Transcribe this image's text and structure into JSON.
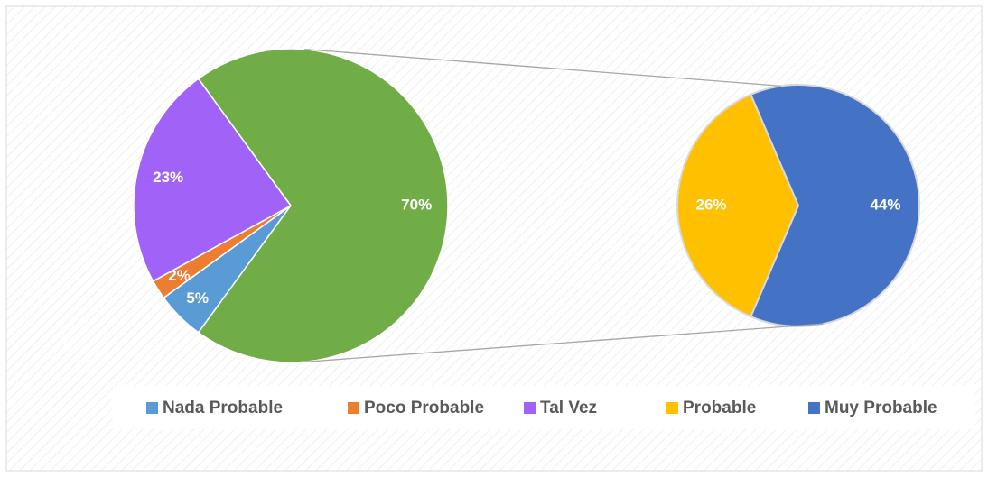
{
  "chart_data": {
    "type": "pie-of-pie",
    "categories": [
      "Nada Probable",
      "Poco Probable",
      "Tal Vez",
      "Probable",
      "Muy Probable"
    ],
    "values": [
      5,
      2,
      23,
      26,
      44
    ],
    "value_labels": [
      "5%",
      "2%",
      "23%",
      "26%",
      "44%"
    ],
    "colors": [
      "#5b9bd5",
      "#ed7d31",
      "#a162f7",
      "#ffc000",
      "#4472c4"
    ],
    "split": [
      3,
      4
    ],
    "other": {
      "value": 70,
      "label": "70%",
      "color": "#70ad47"
    },
    "legend": "bottom"
  }
}
